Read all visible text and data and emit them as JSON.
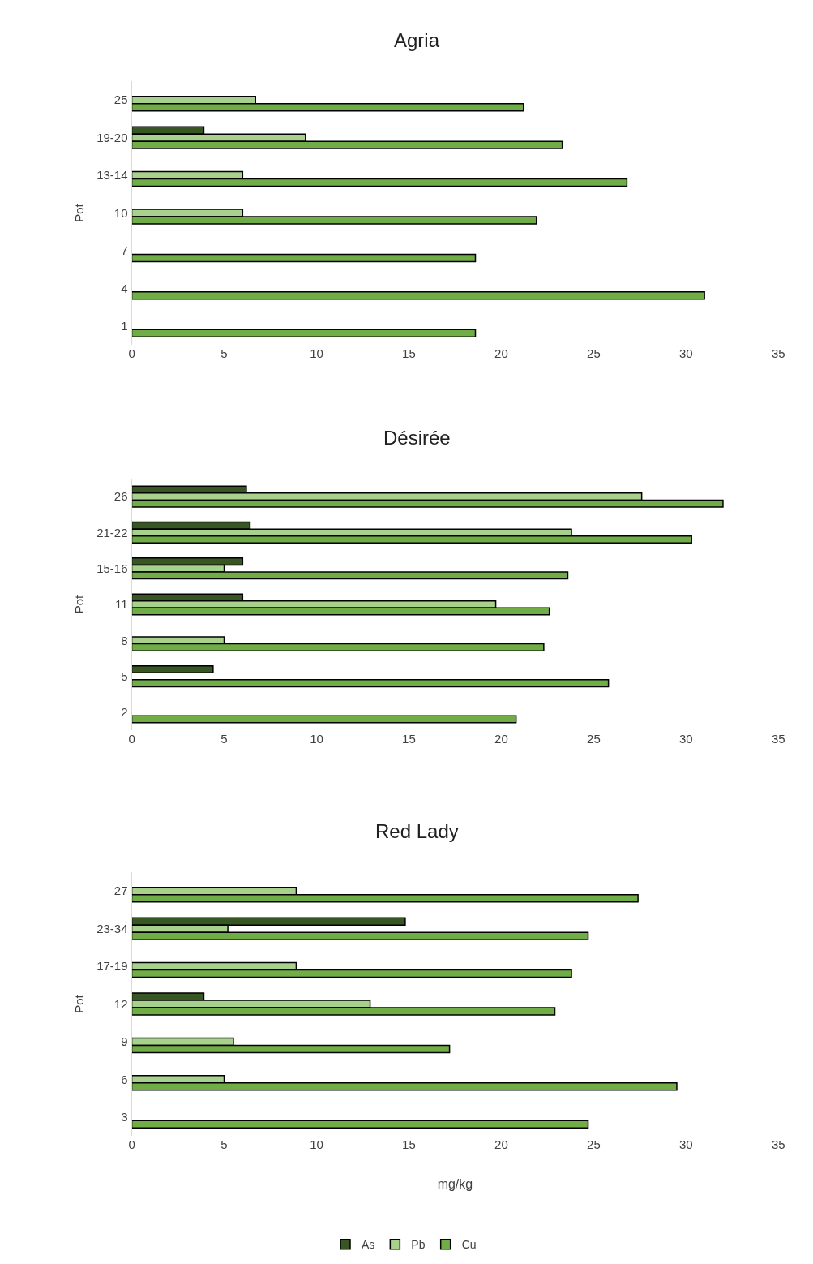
{
  "chart_data": [
    {
      "type": "bar",
      "orientation": "horizontal",
      "title": "Agria",
      "ylabel": "Pot",
      "legend": "bottom",
      "categories": [
        "25",
        "19-20",
        "13-14",
        "10",
        "7",
        "4",
        "1"
      ],
      "xlim": [
        0,
        35
      ],
      "xticks": [
        0,
        5,
        10,
        15,
        20,
        25,
        30,
        35
      ],
      "series": [
        {
          "name": "As",
          "color": "#375623",
          "values": [
            null,
            3.9,
            null,
            null,
            null,
            null,
            null
          ]
        },
        {
          "name": "Pb",
          "color": "#a9d18e",
          "values": [
            6.7,
            9.4,
            6.0,
            6.0,
            null,
            null,
            null
          ]
        },
        {
          "name": "Cu",
          "color": "#70ad47",
          "values": [
            21.2,
            23.3,
            26.8,
            21.9,
            18.6,
            31.0,
            18.6
          ]
        }
      ]
    },
    {
      "type": "bar",
      "orientation": "horizontal",
      "title": "Désirée",
      "ylabel": "Pot",
      "categories": [
        "26",
        "21-22",
        "15-16",
        "11",
        "8",
        "5",
        "2"
      ],
      "xlim": [
        0,
        35
      ],
      "xticks": [
        0,
        5,
        10,
        15,
        20,
        25,
        30,
        35
      ],
      "series": [
        {
          "color": "#375623",
          "values": [
            6.2,
            6.4,
            6.0,
            6.0,
            null,
            4.4,
            null
          ]
        },
        {
          "color": "#a9d18e",
          "values": [
            27.6,
            23.8,
            5.0,
            19.7,
            5.0,
            null,
            null
          ]
        },
        {
          "color": "#70ad47",
          "values": [
            32.0,
            30.3,
            23.6,
            22.6,
            22.3,
            25.8,
            20.8
          ]
        }
      ]
    },
    {
      "type": "bar",
      "orientation": "horizontal",
      "title": "Red Lady",
      "ylabel": "Pot",
      "xlabel": "mg/kg",
      "categories": [
        "27",
        "23-34",
        "17-19",
        "12",
        "9",
        "6",
        "3"
      ],
      "xlim": [
        0,
        35
      ],
      "xticks": [
        0,
        5,
        10,
        15,
        20,
        25,
        30,
        35
      ],
      "series": [
        {
          "color": "#375623",
          "values": [
            null,
            14.8,
            null,
            3.9,
            null,
            null,
            null
          ]
        },
        {
          "color": "#a9d18e",
          "values": [
            8.9,
            5.2,
            8.9,
            12.9,
            5.5,
            5.0,
            null
          ]
        },
        {
          "color": "#70ad47",
          "values": [
            27.4,
            24.7,
            23.8,
            22.9,
            17.2,
            29.5,
            24.7
          ]
        }
      ]
    }
  ]
}
